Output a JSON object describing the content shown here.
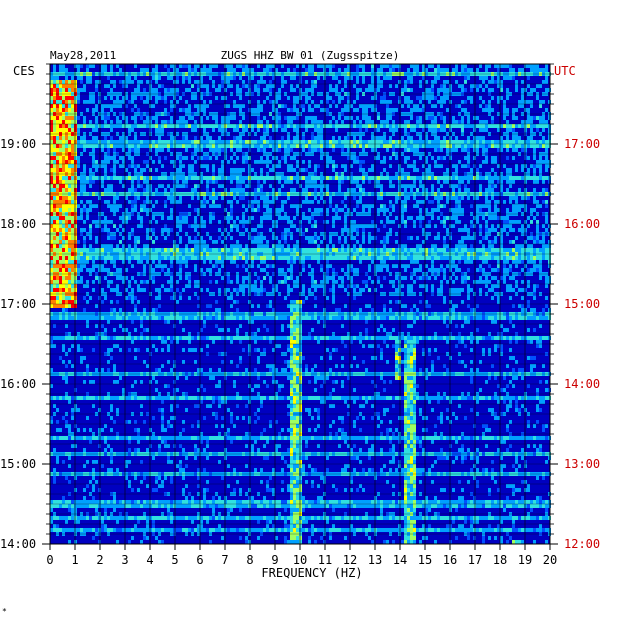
{
  "header": {
    "date": "May28,2011",
    "station": "ZUGS HHZ BW 01 (Zugsspitze)",
    "left_zone": "CES",
    "right_zone": "UTC"
  },
  "footer_mark": "*",
  "colors": {
    "background": "#ffffff",
    "axis_text": "#000000",
    "utc_text": "#cc0000",
    "grid": "#000000",
    "colormap": [
      "#00008b",
      "#0000e0",
      "#0050ff",
      "#00a0ff",
      "#30e0e0",
      "#a0ff60",
      "#ffff00",
      "#ff8000",
      "#ff0000"
    ]
  },
  "chart_data": {
    "type": "heatmap",
    "title": "ZUGS HHZ BW 01 (Zugsspitze)",
    "date": "May28,2011",
    "xlabel": "FREQUENCY (HZ)",
    "xlim": [
      0,
      20
    ],
    "x_ticks": [
      "0",
      "1",
      "2",
      "3",
      "4",
      "5",
      "6",
      "7",
      "8",
      "9",
      "10",
      "11",
      "12",
      "13",
      "14",
      "15",
      "16",
      "17",
      "18",
      "19",
      "20"
    ],
    "left_axis": {
      "zone": "CES",
      "ticks": [
        "19:00",
        "18:00",
        "17:00",
        "16:00",
        "15:00",
        "14:00"
      ]
    },
    "right_axis": {
      "zone": "UTC",
      "ticks": [
        "17:00",
        "16:00",
        "15:00",
        "14:00",
        "13:00",
        "12:00"
      ]
    },
    "features": [
      {
        "freq_hz": [
          0.0,
          1.0
        ],
        "local_time": [
          "17:00",
          "19:50"
        ],
        "intensity": "high"
      },
      {
        "freq_hz": [
          9.6,
          10.0
        ],
        "local_time": [
          "14:00",
          "17:05"
        ],
        "intensity": "medium"
      },
      {
        "freq_hz": [
          14.1,
          14.6
        ],
        "local_time": [
          "14:00",
          "16:35"
        ],
        "intensity": "medium"
      },
      {
        "freq_hz": [
          13.7,
          14.0
        ],
        "local_time": [
          "16:05",
          "16:35"
        ],
        "intensity": "medium"
      },
      {
        "freq_hz": [
          18.4,
          18.8
        ],
        "local_time": [
          "14:00",
          "14:05"
        ],
        "intensity": "high"
      }
    ]
  }
}
